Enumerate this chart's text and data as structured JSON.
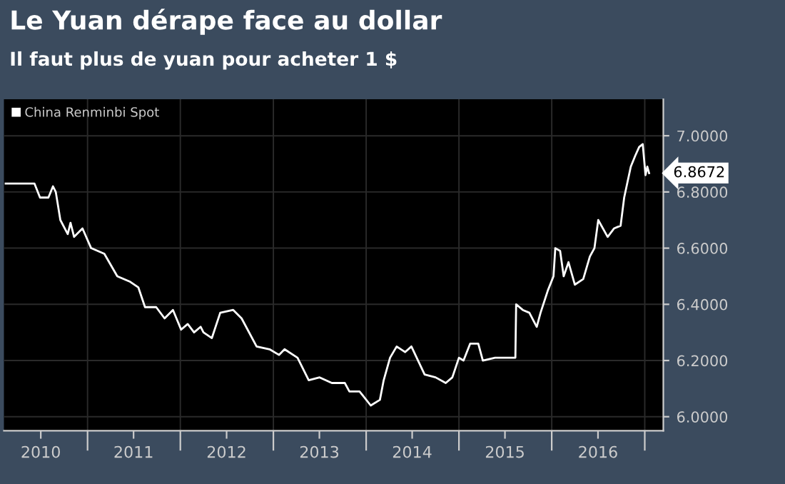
{
  "chart_data": {
    "type": "line",
    "title": "Le Yuan dérape face au dollar",
    "subtitle": "Il faut plus de yuan pour acheter 1 $",
    "series": [
      {
        "name": "China Renminbi Spot",
        "color": "#ffffff",
        "x": [
          "2010-02-13",
          "2010-06-06",
          "2010-06-28",
          "2010-07-31",
          "2010-08-18",
          "2010-08-29",
          "2010-09-16",
          "2010-10-15",
          "2010-10-26",
          "2010-11-09",
          "2010-12-12",
          "2011-01-15",
          "2011-03-08",
          "2011-04-28",
          "2011-06-18",
          "2011-07-20",
          "2011-08-15",
          "2011-09-28",
          "2011-10-31",
          "2011-12-03",
          "2012-01-04",
          "2012-01-30",
          "2012-02-24",
          "2012-03-21",
          "2012-04-01",
          "2012-05-04",
          "2012-06-06",
          "2012-07-27",
          "2012-08-29",
          "2012-10-27",
          "2012-12-17",
          "2013-01-23",
          "2013-02-14",
          "2013-04-06",
          "2013-05-20",
          "2013-07-02",
          "2013-08-19",
          "2013-10-09",
          "2013-10-27",
          "2013-12-06",
          "2014-01-19",
          "2014-02-24",
          "2014-03-11",
          "2014-04-05",
          "2014-05-01",
          "2014-06-03",
          "2014-06-28",
          "2014-08-19",
          "2014-10-01",
          "2014-11-10",
          "2014-12-06",
          "2015-01-01",
          "2015-01-19",
          "2015-02-14",
          "2015-03-18",
          "2015-04-05",
          "2015-05-23",
          "2015-08-11",
          "2015-08-14",
          "2015-09-09",
          "2015-10-05",
          "2015-11-03",
          "2015-11-18",
          "2015-12-17",
          "2016-01-08",
          "2016-01-15",
          "2016-02-03",
          "2016-02-17",
          "2016-03-07",
          "2016-04-01",
          "2016-05-04",
          "2016-05-30",
          "2016-06-17",
          "2016-07-02",
          "2016-08-08",
          "2016-09-02",
          "2016-09-28",
          "2016-10-12",
          "2016-11-07",
          "2016-11-25",
          "2016-12-10",
          "2016-12-24",
          "2017-01-04",
          "2017-01-11",
          "2017-01-18"
        ],
        "values": [
          6.83,
          6.83,
          6.78,
          6.78,
          6.82,
          6.8,
          6.7,
          6.65,
          6.69,
          6.64,
          6.67,
          6.6,
          6.58,
          6.5,
          6.48,
          6.46,
          6.39,
          6.39,
          6.35,
          6.38,
          6.31,
          6.33,
          6.3,
          6.32,
          6.3,
          6.28,
          6.37,
          6.38,
          6.35,
          6.25,
          6.24,
          6.22,
          6.24,
          6.21,
          6.13,
          6.14,
          6.12,
          6.12,
          6.09,
          6.09,
          6.04,
          6.06,
          6.13,
          6.21,
          6.25,
          6.23,
          6.25,
          6.15,
          6.14,
          6.12,
          6.14,
          6.21,
          6.2,
          6.26,
          6.26,
          6.2,
          6.21,
          6.21,
          6.4,
          6.38,
          6.37,
          6.32,
          6.37,
          6.45,
          6.5,
          6.6,
          6.59,
          6.5,
          6.55,
          6.47,
          6.49,
          6.57,
          6.6,
          6.7,
          6.64,
          6.67,
          6.68,
          6.78,
          6.89,
          6.93,
          6.96,
          6.97,
          6.86,
          6.89,
          6.8672
        ]
      }
    ],
    "xlim": [
      "2010-02-06",
      "2017-03-15"
    ],
    "xticks": [
      {
        "value": "2010-07-01",
        "label": "2010"
      },
      {
        "value": "2011-01-01",
        "label": null
      },
      {
        "value": "2011-07-01",
        "label": "2011"
      },
      {
        "value": "2012-01-01",
        "label": null
      },
      {
        "value": "2012-07-01",
        "label": "2012"
      },
      {
        "value": "2013-01-01",
        "label": null
      },
      {
        "value": "2013-07-01",
        "label": "2013"
      },
      {
        "value": "2014-01-01",
        "label": null
      },
      {
        "value": "2014-07-01",
        "label": "2014"
      },
      {
        "value": "2015-01-01",
        "label": null
      },
      {
        "value": "2015-07-01",
        "label": "2015"
      },
      {
        "value": "2016-01-01",
        "label": null
      },
      {
        "value": "2016-07-01",
        "label": "2016"
      },
      {
        "value": "2017-01-01",
        "label": null
      }
    ],
    "ylim": [
      5.95,
      7.13
    ],
    "yticks": [
      {
        "value": 6.0,
        "label": "6.0000"
      },
      {
        "value": 6.2,
        "label": "6.2000"
      },
      {
        "value": 6.4,
        "label": "6.4000"
      },
      {
        "value": 6.6,
        "label": "6.6000"
      },
      {
        "value": 6.8,
        "label": "6.8000"
      },
      {
        "value": 7.0,
        "label": "7.0000"
      }
    ],
    "annotations": [
      {
        "text": "6.8672",
        "x": "2017-01-18",
        "y": 6.8672
      }
    ],
    "grid": true,
    "legend": "top left",
    "marker": "none",
    "line_style": "solid"
  }
}
